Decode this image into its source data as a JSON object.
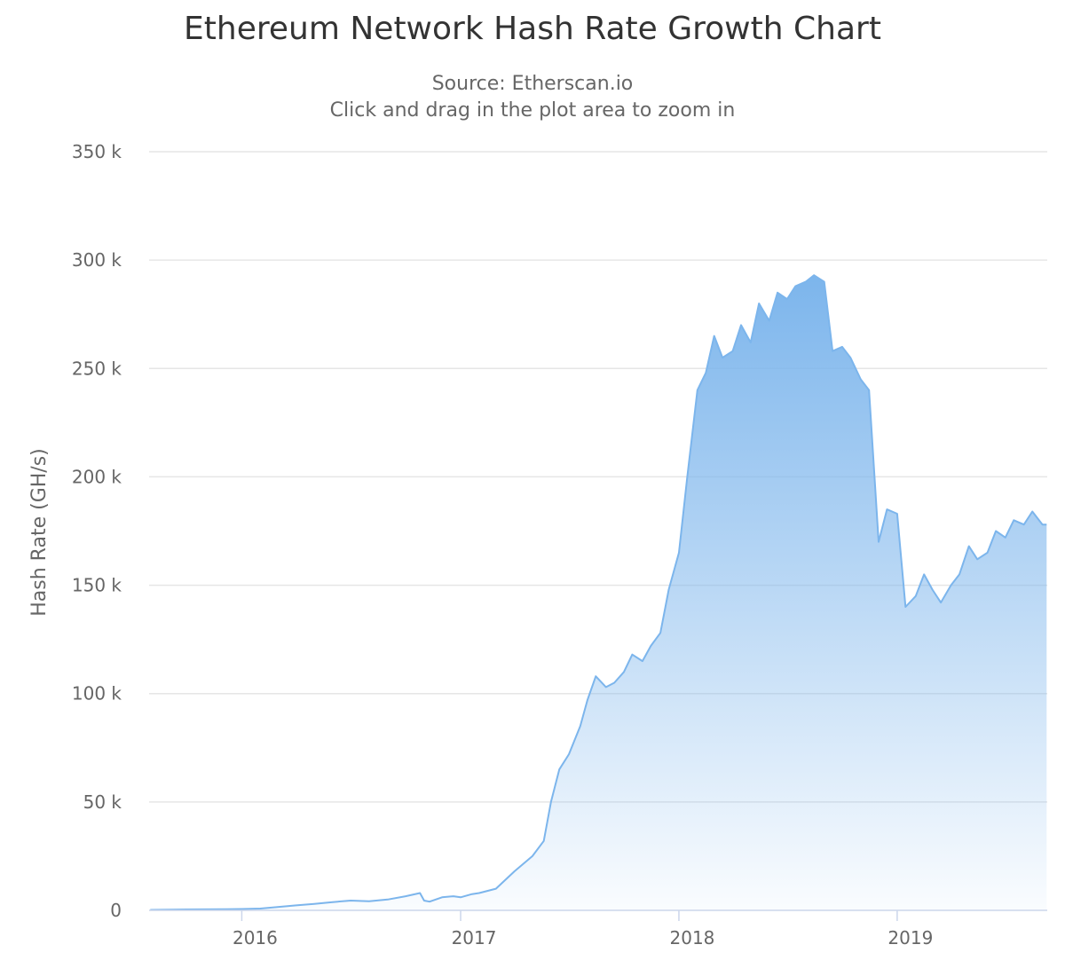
{
  "chart_data": {
    "type": "area",
    "title": "Ethereum Network Hash Rate Growth Chart",
    "subtitle": [
      "Source: Etherscan.io",
      "Click and drag in the plot area to zoom in"
    ],
    "xlabel": "",
    "ylabel": "Hash Rate (GH/s)",
    "x_tick_labels": [
      "2016",
      "2017",
      "2018",
      "2019"
    ],
    "y_tick_labels": [
      "0",
      "50 k",
      "100 k",
      "150 k",
      "200 k",
      "250 k",
      "300 k",
      "350 k"
    ],
    "xlim": [
      "2015-07-30",
      "2019-09-09"
    ],
    "ylim": [
      0,
      350000
    ],
    "grid": "horizontal",
    "legend": "none",
    "colors": {
      "line": "#7cb5ec",
      "fill": "#7cb5ec",
      "grid": "#e6e6e6",
      "axis": "#ccd6eb"
    },
    "series": [
      {
        "x": [
          "2015-08-01",
          "2015-09-01",
          "2015-10-01",
          "2015-11-01",
          "2015-12-01",
          "2016-01-01",
          "2016-02-01",
          "2016-03-01",
          "2016-04-01",
          "2016-05-01",
          "2016-06-01",
          "2016-07-01",
          "2016-08-01",
          "2016-09-01",
          "2016-10-01",
          "2016-10-25",
          "2016-11-01",
          "2016-11-10",
          "2016-12-01",
          "2016-12-20",
          "2017-01-01",
          "2017-01-20",
          "2017-02-01",
          "2017-03-01",
          "2017-04-01",
          "2017-05-01",
          "2017-05-20",
          "2017-06-01",
          "2017-06-15",
          "2017-07-01",
          "2017-07-20",
          "2017-08-01",
          "2017-08-15",
          "2017-09-01",
          "2017-09-15",
          "2017-10-01",
          "2017-10-15",
          "2017-11-01",
          "2017-11-15",
          "2017-12-01",
          "2017-12-15",
          "2018-01-01",
          "2018-01-15",
          "2018-02-01",
          "2018-02-15",
          "2018-03-01",
          "2018-03-15",
          "2018-04-01",
          "2018-04-15",
          "2018-05-01",
          "2018-05-15",
          "2018-06-01",
          "2018-06-15",
          "2018-07-01",
          "2018-07-15",
          "2018-08-01",
          "2018-08-15",
          "2018-09-01",
          "2018-09-15",
          "2018-10-01",
          "2018-10-15",
          "2018-11-01",
          "2018-11-15",
          "2018-12-01",
          "2018-12-15",
          "2019-01-01",
          "2019-01-15",
          "2019-02-01",
          "2019-02-15",
          "2019-03-01",
          "2019-03-15",
          "2019-04-01",
          "2019-04-15",
          "2019-05-01",
          "2019-05-15",
          "2019-06-01",
          "2019-06-15",
          "2019-07-01",
          "2019-07-15",
          "2019-08-01",
          "2019-08-15",
          "2019-09-01",
          "2019-09-08"
        ],
        "values": [
          200,
          300,
          400,
          450,
          500,
          600,
          800,
          1500,
          2300,
          3000,
          3800,
          4500,
          4200,
          5000,
          6500,
          8000,
          4500,
          4000,
          6000,
          6500,
          6000,
          7500,
          8000,
          10000,
          18000,
          25000,
          32000,
          50000,
          65000,
          72000,
          85000,
          97000,
          108000,
          103000,
          105000,
          110000,
          118000,
          115000,
          122000,
          128000,
          148000,
          165000,
          200000,
          240000,
          248000,
          265000,
          255000,
          258000,
          270000,
          262000,
          280000,
          272000,
          285000,
          282000,
          288000,
          290000,
          293000,
          290000,
          258000,
          260000,
          255000,
          245000,
          240000,
          170000,
          185000,
          183000,
          140000,
          145000,
          155000,
          148000,
          142000,
          150000,
          155000,
          168000,
          162000,
          165000,
          175000,
          172000,
          180000,
          178000,
          184000,
          178000,
          178000
        ]
      }
    ]
  }
}
